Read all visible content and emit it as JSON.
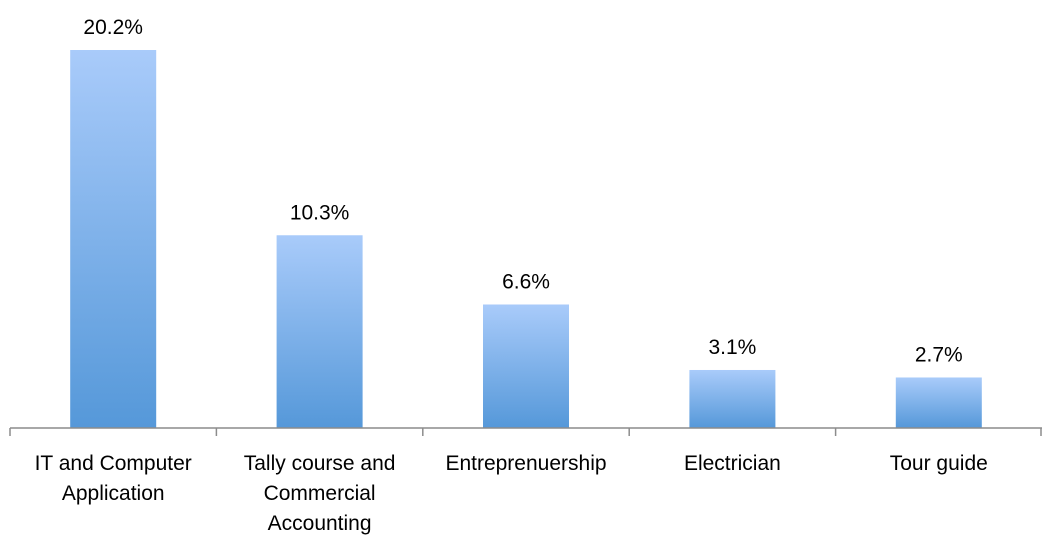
{
  "chart_data": {
    "type": "bar",
    "title": "",
    "xlabel": "",
    "ylabel": "",
    "categories": [
      "IT and Computer Application",
      "Tally course and Commercial Accounting",
      "Entreprenuership",
      "Electrician",
      "Tour guide"
    ],
    "category_lines": [
      [
        "IT and Computer",
        "Application"
      ],
      [
        "Tally course and",
        "Commercial",
        "Accounting"
      ],
      [
        "Entreprenuership"
      ],
      [
        "Electrician"
      ],
      [
        "Tour guide"
      ]
    ],
    "values": [
      20.2,
      10.3,
      6.6,
      3.1,
      2.7
    ],
    "data_labels": [
      "20.2%",
      "10.3%",
      "6.6%",
      "3.1%",
      "2.7%"
    ],
    "unit": "%",
    "ylim": [
      0,
      20.2
    ],
    "grid": false,
    "legend": "none",
    "colors": {
      "bar_top": "#a9cbfa",
      "bar_bottom": "#5598d9",
      "axis": "#8c8c8c",
      "text": "#000000"
    }
  }
}
